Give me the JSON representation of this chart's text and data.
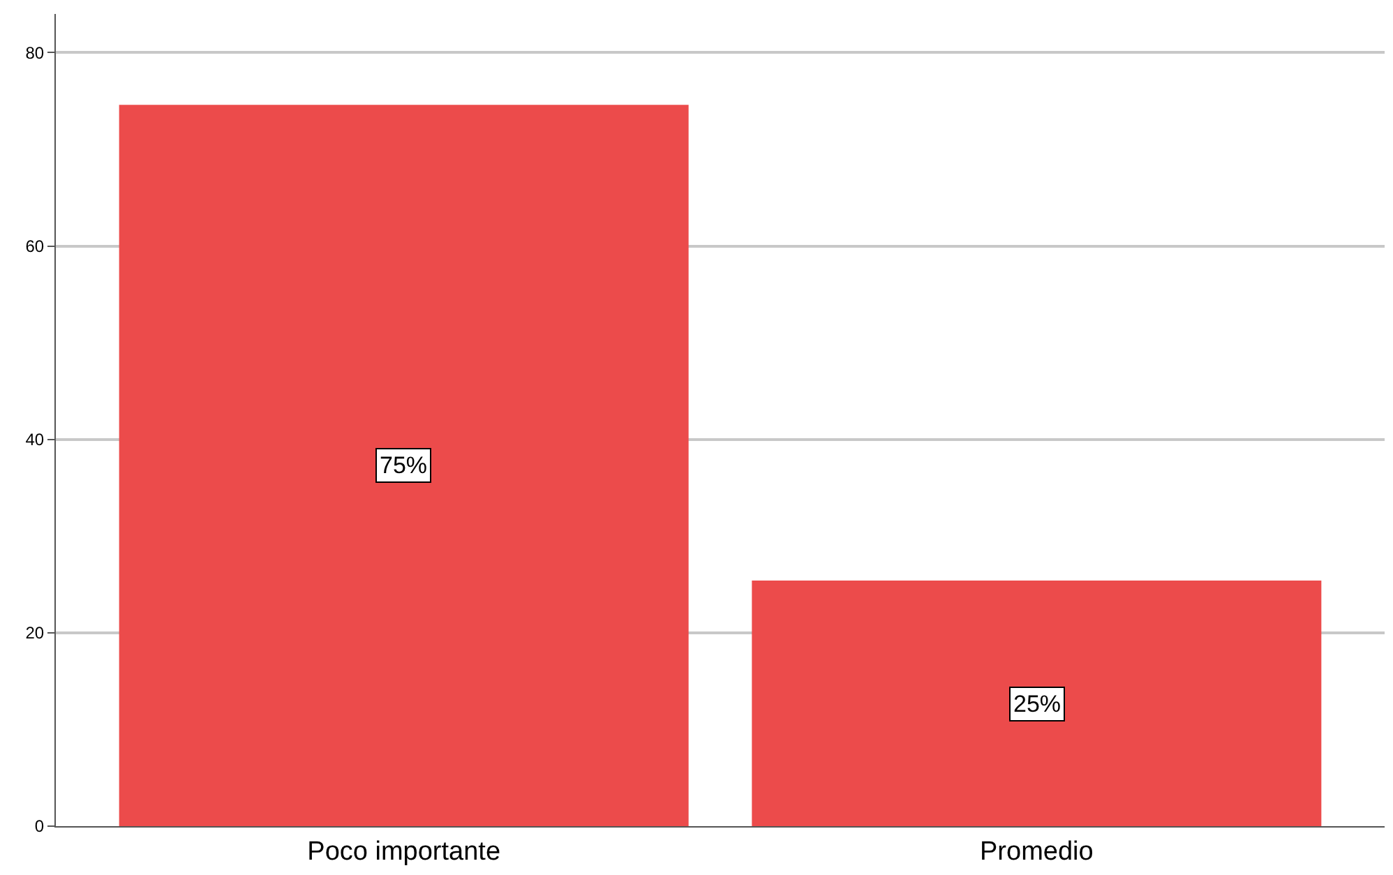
{
  "chart_data": {
    "type": "bar",
    "categories": [
      "Poco importante",
      "Promedio"
    ],
    "values": [
      74.6,
      25.4
    ],
    "value_labels": [
      "75%",
      "25%"
    ],
    "color": "#ec4b4b",
    "ylim": [
      0,
      84
    ],
    "yticks": [
      0,
      20,
      40,
      60,
      80
    ],
    "grid": "y"
  }
}
